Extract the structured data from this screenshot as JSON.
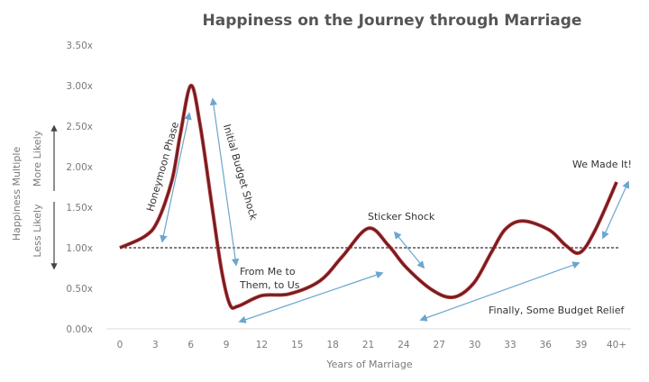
{
  "chart_data": {
    "type": "line",
    "title": "Happiness on the Journey through Marriage",
    "xlabel": "Years of Marriage",
    "ylabel": "Happiness Multiple",
    "ylabel_up": "More Likely",
    "ylabel_down": "Less Likely",
    "x_ticks": [
      "0",
      "3",
      "6",
      "9",
      "12",
      "15",
      "18",
      "21",
      "24",
      "27",
      "30",
      "33",
      "36",
      "39",
      "40+"
    ],
    "y_ticks": [
      "0.00x",
      "0.50x",
      "1.00x",
      "1.50x",
      "2.00x",
      "2.50x",
      "3.00x",
      "3.50x"
    ],
    "ylim": [
      0,
      3.5
    ],
    "baseline": 1.0,
    "grid": false,
    "line_color": "#6b1f24",
    "arrow_color": "#6aa6cf",
    "points": [
      [
        0,
        1.0
      ],
      [
        2.1,
        1.14
      ],
      [
        3.2,
        1.33
      ],
      [
        4.4,
        1.83
      ],
      [
        5.1,
        2.39
      ],
      [
        6,
        3.0
      ],
      [
        6.8,
        2.5
      ],
      [
        7.8,
        1.5
      ],
      [
        8.6,
        0.72
      ],
      [
        9.3,
        0.3
      ],
      [
        10,
        0.28
      ],
      [
        12,
        0.41
      ],
      [
        14.3,
        0.43
      ],
      [
        16.9,
        0.59
      ],
      [
        18.8,
        0.89
      ],
      [
        21,
        1.24
      ],
      [
        22.7,
        1.03
      ],
      [
        24.2,
        0.76
      ],
      [
        26.4,
        0.48
      ],
      [
        28.2,
        0.39
      ],
      [
        29.9,
        0.56
      ],
      [
        31.4,
        0.94
      ],
      [
        32.6,
        1.23
      ],
      [
        34.1,
        1.33
      ],
      [
        36.3,
        1.22
      ],
      [
        37.7,
        1.03
      ],
      [
        38.9,
        0.94
      ],
      [
        40.2,
        1.22
      ],
      [
        "40+",
        1.81
      ]
    ],
    "annotations": [
      {
        "id": "honeymoon",
        "text": "Honeymoon Phase"
      },
      {
        "id": "budget",
        "text": "Initial Budget Shock"
      },
      {
        "id": "me1",
        "text": "From Me to"
      },
      {
        "id": "me2",
        "text": "Them, to Us"
      },
      {
        "id": "sticker",
        "text": "Sticker Shock"
      },
      {
        "id": "relief",
        "text": "Finally, Some Budget Relief"
      },
      {
        "id": "made",
        "text": "We Made It!"
      }
    ]
  }
}
